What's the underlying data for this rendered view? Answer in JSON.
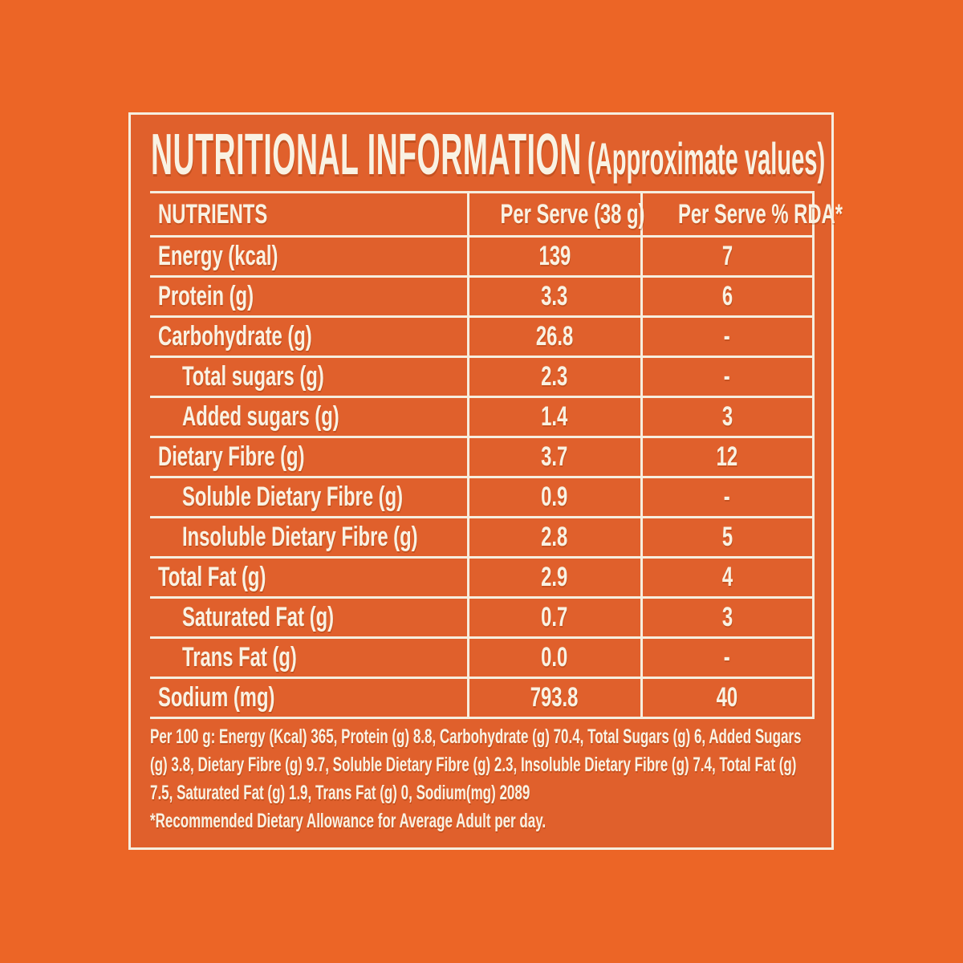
{
  "colors": {
    "background": "#EC6526",
    "panel": "#E0602C",
    "rule_and_text": "#F6EEDF"
  },
  "title": {
    "main": "NUTRITIONAL INFORMATION",
    "sub": "(Approximate values)"
  },
  "table": {
    "columns": [
      "NUTRIENTS",
      "Per Serve (38 g)",
      "Per Serve % RDA*"
    ],
    "rows": [
      {
        "nutrient": "Energy (kcal)",
        "per_serve": "139",
        "rda": "7",
        "indent": false
      },
      {
        "nutrient": "Protein (g)",
        "per_serve": "3.3",
        "rda": "6",
        "indent": false
      },
      {
        "nutrient": "Carbohydrate (g)",
        "per_serve": "26.8",
        "rda": "-",
        "indent": false
      },
      {
        "nutrient": "Total sugars (g)",
        "per_serve": "2.3",
        "rda": "-",
        "indent": true
      },
      {
        "nutrient": "Added sugars (g)",
        "per_serve": "1.4",
        "rda": "3",
        "indent": true
      },
      {
        "nutrient": "Dietary Fibre (g)",
        "per_serve": "3.7",
        "rda": "12",
        "indent": false
      },
      {
        "nutrient": "Soluble Dietary Fibre (g)",
        "per_serve": "0.9",
        "rda": "-",
        "indent": true
      },
      {
        "nutrient": "Insoluble Dietary Fibre (g)",
        "per_serve": "2.8",
        "rda": "5",
        "indent": true
      },
      {
        "nutrient": "Total Fat (g)",
        "per_serve": "2.9",
        "rda": "4",
        "indent": false
      },
      {
        "nutrient": "Saturated Fat (g)",
        "per_serve": "0.7",
        "rda": "3",
        "indent": true
      },
      {
        "nutrient": "Trans Fat (g)",
        "per_serve": "0.0",
        "rda": "-",
        "indent": true
      },
      {
        "nutrient": "Sodium (mg)",
        "per_serve": "793.8",
        "rda": "40",
        "indent": false
      }
    ]
  },
  "footnotes": {
    "per_100g": "Per 100 g: Energy (Kcal) 365, Protein (g) 8.8, Carbohydrate (g) 70.4, Total Sugars (g) 6, Added Sugars (g) 3.8, Dietary Fibre (g) 9.7, Soluble Dietary Fibre (g) 2.3, Insoluble Dietary Fibre (g) 7.4, Total Fat (g) 7.5, Saturated Fat (g) 1.9, Trans Fat (g) 0, Sodium(mg) 2089",
    "rda_note": "*Recommended Dietary Allowance for Average Adult per day."
  }
}
